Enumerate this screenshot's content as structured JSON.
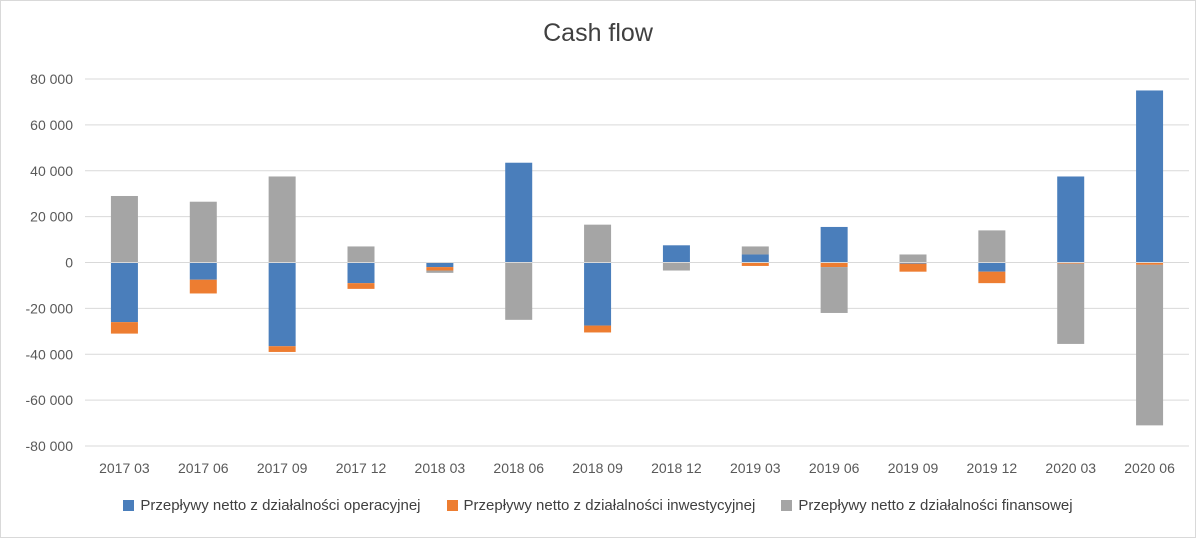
{
  "chart_data": {
    "type": "bar",
    "stacked": true,
    "title": "Cash flow",
    "xlabel": "",
    "ylabel": "",
    "ylim": [
      -80000,
      80000
    ],
    "yticks": [
      80000,
      60000,
      40000,
      20000,
      0,
      -20000,
      -40000,
      -60000,
      -80000
    ],
    "ytick_labels": [
      "80 000",
      "60 000",
      "40 000",
      "20 000",
      "0",
      "-20 000",
      "-40 000",
      "-60 000",
      "-80 000"
    ],
    "grid": true,
    "legend_position": "bottom",
    "categories": [
      "2017 03",
      "2017 06",
      "2017 09",
      "2017 12",
      "2018 03",
      "2018 06",
      "2018 09",
      "2018 12",
      "2019 03",
      "2019 06",
      "2019 09",
      "2019 12",
      "2020 03",
      "2020 06"
    ],
    "series": [
      {
        "name": "Przepływy netto z działalności operacyjnej",
        "color": "#4a7ebb",
        "values": [
          -26000,
          -7500,
          -36500,
          -9000,
          -2000,
          43500,
          -27500,
          7500,
          3500,
          15500,
          -500,
          -4000,
          37500,
          75000
        ]
      },
      {
        "name": "Przepływy netto z działalności inwestycyjnej",
        "color": "#ed7d31",
        "values": [
          -5000,
          -6000,
          -2500,
          -2500,
          -1500,
          0,
          -3000,
          0,
          -1500,
          -2000,
          -3500,
          -5000,
          -500,
          -1000
        ]
      },
      {
        "name": "Przepływy netto z działalności finansowej",
        "color": "#a5a5a5",
        "values": [
          29000,
          26500,
          37500,
          7000,
          -1000,
          -25000,
          16500,
          -3500,
          3500,
          -20000,
          3500,
          14000,
          -35000,
          -70000
        ]
      }
    ]
  }
}
